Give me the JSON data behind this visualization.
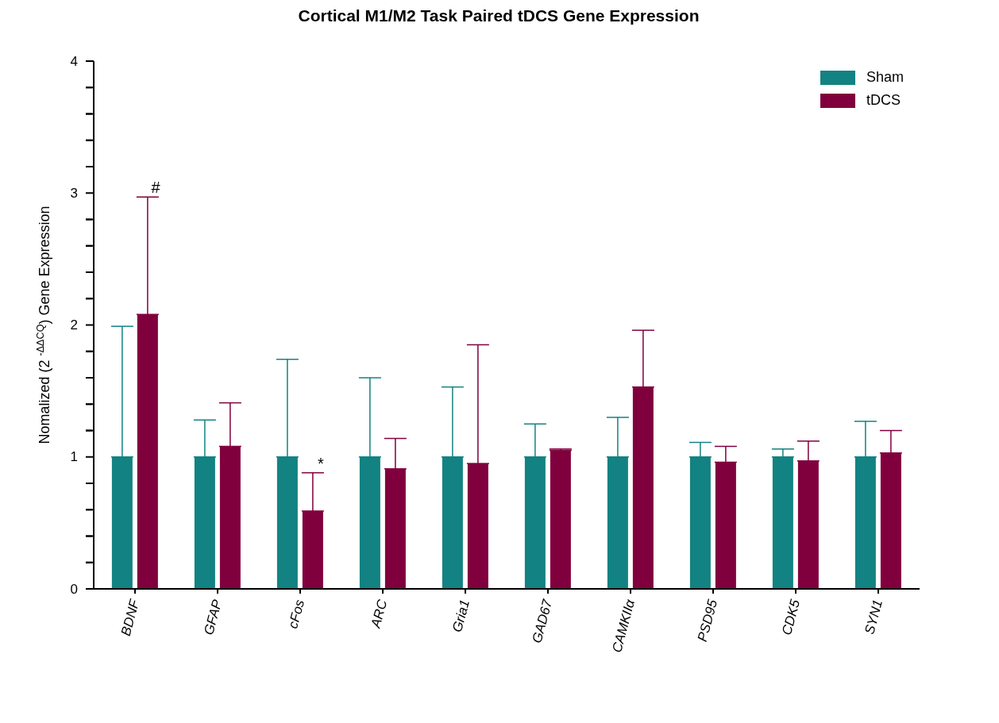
{
  "chart_data": {
    "type": "bar",
    "title": "Cortical M1/M2 Task Paired tDCS Gene Expression",
    "ylabel": "Nomalized (2 $^{-ΔΔCQ}$) Gene Expression",
    "categories": [
      "BDNF",
      "GFAP",
      "cFos",
      "ARC",
      "Gria1",
      "GAD67",
      "CAMKIIα",
      "PSD95",
      "CDK5",
      "SYN1"
    ],
    "series": [
      {
        "name": "Sham",
        "color": "#138282",
        "values": [
          1,
          1,
          1,
          1,
          1,
          1,
          1,
          1,
          1,
          1
        ],
        "errors": [
          [
            1,
            1.99
          ],
          [
            1,
            1.28
          ],
          [
            1,
            1.74
          ],
          [
            1,
            1.6
          ],
          [
            1,
            1.53
          ],
          [
            1,
            1.25
          ],
          [
            1,
            1.3
          ],
          [
            1,
            1.11
          ],
          [
            1,
            1.06
          ],
          [
            1,
            1.27
          ]
        ]
      },
      {
        "name": "tDCS",
        "color": "#80003d",
        "values": [
          2.08,
          1.08,
          0.59,
          0.91,
          0.95,
          1.05,
          1.53,
          0.96,
          0.97,
          1.03
        ],
        "errors": [
          [
            2.08,
            2.97
          ],
          [
            1.08,
            1.41
          ],
          [
            0.59,
            0.88
          ],
          [
            0.91,
            1.14
          ],
          [
            0.95,
            1.85
          ],
          [
            1.05,
            1.06
          ],
          [
            1.53,
            1.96
          ],
          [
            0.96,
            1.08
          ],
          [
            0.97,
            1.12
          ],
          [
            1.03,
            1.2
          ]
        ]
      }
    ],
    "ylim": [
      0,
      4
    ],
    "yticks": [
      0,
      {
        "value": 0.2,
        "label": null
      },
      {
        "value": 0.4,
        "label": null
      },
      {
        "value": 0.6,
        "label": null
      },
      {
        "value": 0.8,
        "label": null
      },
      1,
      {
        "value": 1.2,
        "label": null
      },
      {
        "value": 1.4,
        "label": null
      },
      {
        "value": 1.6,
        "label": null
      },
      {
        "value": 1.8,
        "label": null
      },
      2,
      {
        "value": 2.2,
        "label": null
      },
      {
        "value": 2.4,
        "label": null
      },
      {
        "value": 2.6,
        "label": null
      },
      {
        "value": 2.8,
        "label": null
      },
      3,
      {
        "value": 3.2,
        "label": null
      },
      {
        "value": 3.4,
        "label": null
      },
      {
        "value": 3.6,
        "label": null
      },
      {
        "value": 3.8,
        "label": null
      },
      4
    ],
    "grid": false,
    "legend": "top right",
    "annotations": [
      {
        "text": "#",
        "x": "BDNF",
        "y": 2.97
      },
      {
        "text": "*",
        "x": "cFos",
        "y": 0.88
      }
    ]
  }
}
